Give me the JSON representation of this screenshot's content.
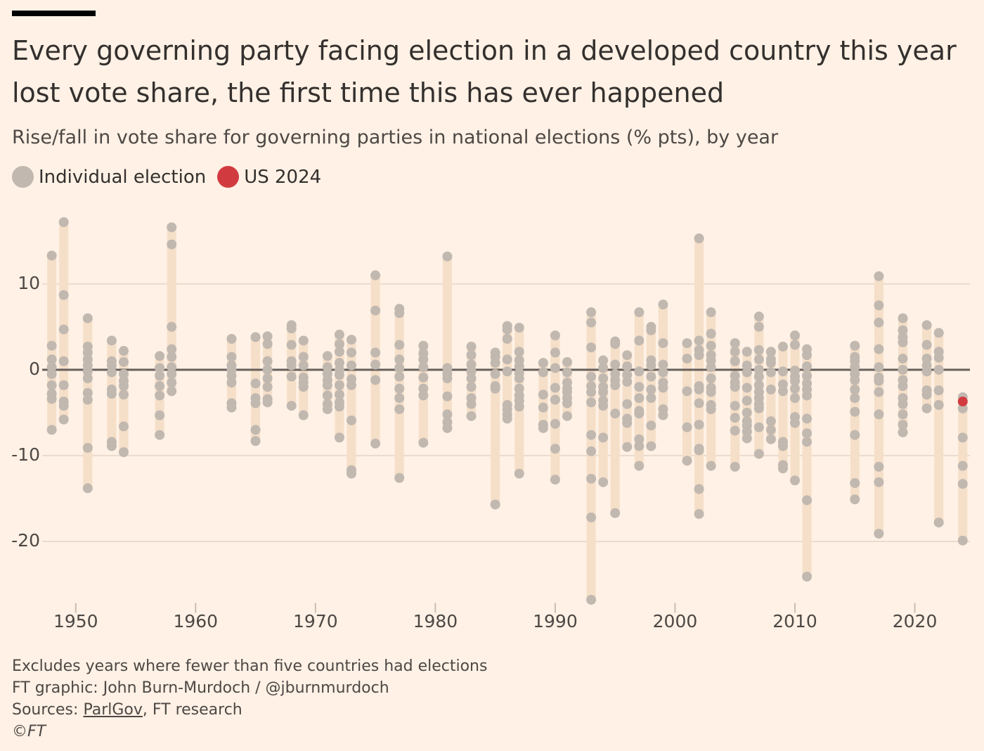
{
  "chart_data": {
    "type": "scatter",
    "title": "Every governing party facing election in a developed country this year lost vote share, the first time this has ever happened",
    "subtitle": "Rise/fall in vote share for governing parties in national elections (% pts), by year",
    "footnote": "Excludes years where fewer than five countries had elections",
    "credit": "FT graphic: John Burn-Murdoch / @jburnmurdoch",
    "sources": {
      "label": "Sources:",
      "link": "ParlGov",
      "rest": ", FT research"
    },
    "copyright": "©FT",
    "range_color": "#f5dfc8",
    "xlim": [
      1947.2,
      2024.6
    ],
    "xticks": [
      1950,
      1960,
      1970,
      1980,
      1990,
      2000,
      2010,
      2020
    ],
    "ylim": [
      -27.5,
      18.5
    ],
    "yticks": [
      -20,
      -10,
      0,
      10
    ],
    "grid": true,
    "series": [
      {
        "name": "Individual election",
        "color": "#c1b8b0",
        "x": [
          1948,
          1948,
          1948,
          1948,
          1948,
          1948,
          1948,
          1948,
          1948,
          1949,
          1949,
          1949,
          1949,
          1949,
          1949,
          1949,
          1949,
          1951,
          1951,
          1951,
          1951,
          1951,
          1951,
          1951,
          1951,
          1951,
          1951,
          1951,
          1953,
          1953,
          1953,
          1953,
          1953,
          1953,
          1953,
          1953,
          1954,
          1954,
          1954,
          1954,
          1954,
          1954,
          1954,
          1954,
          1957,
          1957,
          1957,
          1957,
          1957,
          1957,
          1957,
          1958,
          1958,
          1958,
          1958,
          1958,
          1958,
          1958,
          1958,
          1958,
          1963,
          1963,
          1963,
          1963,
          1963,
          1963,
          1963,
          1963,
          1965,
          1965,
          1965,
          1965,
          1965,
          1965,
          1966,
          1966,
          1966,
          1966,
          1966,
          1966,
          1966,
          1966,
          1968,
          1968,
          1968,
          1968,
          1968,
          1968,
          1968,
          1969,
          1969,
          1969,
          1969,
          1969,
          1969,
          1969,
          1971,
          1971,
          1971,
          1971,
          1971,
          1971,
          1971,
          1971,
          1972,
          1972,
          1972,
          1972,
          1972,
          1972,
          1972,
          1972,
          1972,
          1972,
          1972,
          1973,
          1973,
          1973,
          1973,
          1973,
          1973,
          1973,
          1973,
          1975,
          1975,
          1975,
          1975,
          1975,
          1975,
          1977,
          1977,
          1977,
          1977,
          1977,
          1977,
          1977,
          1977,
          1977,
          1977,
          1979,
          1979,
          1979,
          1979,
          1979,
          1979,
          1979,
          1979,
          1981,
          1981,
          1981,
          1981,
          1981,
          1981,
          1981,
          1981,
          1983,
          1983,
          1983,
          1983,
          1983,
          1983,
          1983,
          1983,
          1983,
          1985,
          1985,
          1985,
          1985,
          1985,
          1985,
          1985,
          1986,
          1986,
          1986,
          1986,
          1986,
          1986,
          1986,
          1986,
          1986,
          1987,
          1987,
          1987,
          1987,
          1987,
          1987,
          1987,
          1987,
          1987,
          1987,
          1987,
          1989,
          1989,
          1989,
          1989,
          1989,
          1989,
          1990,
          1990,
          1990,
          1990,
          1990,
          1990,
          1990,
          1990,
          1991,
          1991,
          1991,
          1991,
          1991,
          1991,
          1991,
          1991,
          1993,
          1993,
          1993,
          1993,
          1993,
          1993,
          1993,
          1993,
          1993,
          1993,
          1993,
          1993,
          1994,
          1994,
          1994,
          1994,
          1994,
          1994,
          1994,
          1994,
          1994,
          1995,
          1995,
          1995,
          1995,
          1995,
          1995,
          1995,
          1995,
          1996,
          1996,
          1996,
          1996,
          1996,
          1996,
          1996,
          1996,
          1997,
          1997,
          1997,
          1997,
          1997,
          1997,
          1997,
          1997,
          1997,
          1997,
          1998,
          1998,
          1998,
          1998,
          1998,
          1998,
          1998,
          1998,
          1998,
          1999,
          1999,
          1999,
          1999,
          1999,
          1999,
          1999,
          1999,
          2001,
          2001,
          2001,
          2001,
          2001,
          2002,
          2002,
          2002,
          2002,
          2002,
          2002,
          2002,
          2002,
          2002,
          2002,
          2002,
          2002,
          2003,
          2003,
          2003,
          2003,
          2003,
          2003,
          2003,
          2003,
          2003,
          2003,
          2003,
          2003,
          2005,
          2005,
          2005,
          2005,
          2005,
          2005,
          2005,
          2005,
          2005,
          2005,
          2006,
          2006,
          2006,
          2006,
          2006,
          2006,
          2006,
          2006,
          2006,
          2006,
          2007,
          2007,
          2007,
          2007,
          2007,
          2007,
          2007,
          2007,
          2007,
          2007,
          2007,
          2007,
          2007,
          2008,
          2008,
          2008,
          2008,
          2008,
          2008,
          2008,
          2008,
          2009,
          2009,
          2009,
          2009,
          2009,
          2009,
          2009,
          2009,
          2010,
          2010,
          2010,
          2010,
          2010,
          2010,
          2010,
          2010,
          2010,
          2010,
          2011,
          2011,
          2011,
          2011,
          2011,
          2011,
          2011,
          2011,
          2011,
          2011,
          2011,
          2011,
          2015,
          2015,
          2015,
          2015,
          2015,
          2015,
          2015,
          2015,
          2015,
          2015,
          2015,
          2015,
          2017,
          2017,
          2017,
          2017,
          2017,
          2017,
          2017,
          2017,
          2017,
          2017,
          2017,
          2017,
          2019,
          2019,
          2019,
          2019,
          2019,
          2019,
          2019,
          2019,
          2019,
          2019,
          2019,
          2019,
          2019,
          2021,
          2021,
          2021,
          2021,
          2021,
          2021,
          2021,
          2021,
          2022,
          2022,
          2022,
          2022,
          2022,
          2022,
          2022,
          2024,
          2024,
          2024,
          2024,
          2024,
          2024
        ],
        "values": [
          13.3,
          2.8,
          1.2,
          0.3,
          -0.5,
          -1.8,
          -2.8,
          -3.4,
          -7.0,
          17.2,
          8.7,
          4.7,
          1.0,
          -1.8,
          -3.7,
          -4.2,
          -5.8,
          6.0,
          2.7,
          2.0,
          1.2,
          0.5,
          -0.2,
          -1.0,
          -2.7,
          -3.5,
          -9.1,
          -13.8,
          3.4,
          1.0,
          0.5,
          -0.3,
          -2.3,
          -2.8,
          -8.4,
          -8.9,
          2.2,
          0.9,
          -0.5,
          -1.3,
          -1.9,
          -2.9,
          -6.6,
          -9.6,
          1.6,
          0.2,
          -0.7,
          -1.9,
          -3.0,
          -5.3,
          -7.6,
          16.6,
          14.6,
          5.0,
          2.4,
          1.5,
          0.3,
          -0.5,
          -1.5,
          -2.5,
          3.6,
          1.5,
          0.5,
          0.0,
          -0.7,
          -1.5,
          -3.9,
          -4.4,
          3.8,
          -1.6,
          -3.3,
          -3.9,
          -7.0,
          -8.3,
          3.9,
          3.0,
          1.0,
          0.0,
          -1.0,
          -2.0,
          -3.4,
          -3.8,
          5.2,
          4.8,
          2.9,
          1.0,
          0.5,
          -0.8,
          -4.2,
          3.4,
          1.5,
          0.5,
          -0.9,
          -1.5,
          -2.0,
          -5.3,
          1.6,
          0.3,
          -0.5,
          -1.2,
          -1.8,
          -3.0,
          -4.0,
          -4.6,
          4.1,
          3.0,
          2.1,
          0.8,
          0.0,
          -0.6,
          -1.8,
          -2.9,
          -3.8,
          -4.3,
          -7.9,
          3.5,
          2.0,
          0.5,
          -1.1,
          -1.8,
          -5.9,
          -11.7,
          -12.1,
          11.0,
          6.9,
          2.0,
          0.6,
          -1.2,
          -8.6,
          7.1,
          6.6,
          2.9,
          1.2,
          0.2,
          -0.8,
          -2.2,
          -3.3,
          -4.6,
          -12.6,
          2.8,
          1.9,
          1.2,
          0.3,
          -0.9,
          -2.2,
          -3.0,
          -8.5,
          13.2,
          0.2,
          -0.5,
          -1.0,
          -3.1,
          -5.2,
          -6.1,
          -6.8,
          2.7,
          1.7,
          0.6,
          -0.2,
          -1.0,
          -2.0,
          -3.3,
          -4.0,
          -5.4,
          2.0,
          1.5,
          0.8,
          -0.5,
          -1.9,
          -2.2,
          -15.7,
          5.1,
          4.7,
          3.6,
          1.2,
          -0.2,
          -4.1,
          -4.6,
          -5.2,
          -5.7,
          4.9,
          2.1,
          1.1,
          0.4,
          -0.4,
          -1.0,
          -2.2,
          -3.0,
          -3.6,
          -4.3,
          -12.1,
          0.8,
          -0.3,
          -2.9,
          -4.4,
          -6.4,
          -6.8,
          4.0,
          2.0,
          0.2,
          -2.1,
          -3.5,
          -6.3,
          -9.2,
          -12.8,
          0.9,
          -0.3,
          -1.5,
          -2.2,
          -2.6,
          -3.3,
          -3.9,
          -5.4,
          6.7,
          5.5,
          2.6,
          -0.8,
          -1.9,
          -2.6,
          -3.8,
          -7.6,
          -9.5,
          -12.7,
          -17.2,
          -26.8,
          1.1,
          0.2,
          -1.0,
          -2.0,
          -2.6,
          -3.6,
          -4.2,
          -7.9,
          -13.1,
          3.3,
          3.0,
          0.6,
          -0.5,
          -1.2,
          -1.8,
          -5.1,
          -16.7,
          1.7,
          0.4,
          -0.6,
          -1.4,
          -4.0,
          -5.7,
          -6.2,
          -9.0,
          6.7,
          3.4,
          -0.2,
          -2.0,
          -3.3,
          -4.8,
          -5.1,
          -8.1,
          -8.9,
          -11.2,
          5.0,
          4.6,
          1.1,
          0.5,
          -0.8,
          -2.3,
          -3.3,
          -6.5,
          -8.9,
          7.6,
          3.1,
          0.6,
          -0.3,
          -1.5,
          -2.1,
          -4.6,
          -5.3,
          3.1,
          1.3,
          -2.5,
          -6.7,
          -10.6,
          15.3,
          3.4,
          2.3,
          1.7,
          -1.9,
          -2.3,
          -3.9,
          -6.4,
          -9.2,
          -9.4,
          -13.9,
          -16.8,
          6.7,
          4.2,
          2.8,
          1.7,
          1.1,
          0.3,
          -1.0,
          -2.1,
          -2.6,
          -4.1,
          -4.6,
          -11.2,
          3.1,
          2.1,
          1.0,
          -0.7,
          -1.5,
          -2.0,
          -4.2,
          -5.6,
          -7.1,
          -11.3,
          2.1,
          0.5,
          -0.3,
          -2.1,
          -3.6,
          -5.0,
          -6.0,
          -6.5,
          -7.2,
          -8.0,
          6.2,
          5.0,
          2.3,
          1.2,
          0.0,
          -0.8,
          -1.8,
          -2.6,
          -3.3,
          -4.0,
          -4.5,
          -6.7,
          -9.8,
          2.1,
          1.2,
          0.8,
          -0.3,
          -2.3,
          -6.0,
          -7.0,
          -8.1,
          2.7,
          -0.2,
          -1.7,
          -2.5,
          -8.4,
          -8.9,
          -11.1,
          -11.5,
          4.0,
          2.9,
          -0.1,
          -0.8,
          -1.3,
          -2.2,
          -3.3,
          -5.5,
          -6.2,
          -12.9,
          2.4,
          1.7,
          0.4,
          -0.7,
          -1.6,
          -2.3,
          -3.0,
          -5.7,
          -7.4,
          -8.4,
          -15.2,
          -24.1,
          2.8,
          1.5,
          1.0,
          0.3,
          -0.5,
          -1.2,
          -2.3,
          -3.3,
          -4.9,
          -7.6,
          -13.2,
          -15.1,
          10.9,
          7.5,
          5.5,
          2.4,
          0.3,
          -0.9,
          -1.3,
          -2.6,
          -5.2,
          -11.3,
          -13.1,
          -19.1,
          6.0,
          4.6,
          3.8,
          3.2,
          1.3,
          0.0,
          -1.2,
          -1.9,
          -3.3,
          -4.0,
          -5.2,
          -6.4,
          -7.3,
          5.2,
          2.9,
          1.3,
          0.5,
          -0.2,
          -2.4,
          -2.9,
          -4.5,
          4.3,
          2.1,
          1.4,
          0.0,
          -2.4,
          -4.1,
          -17.8,
          -3.2,
          -4.5,
          -7.9,
          -11.2,
          -13.3,
          -19.9
        ]
      },
      {
        "name": "US 2024",
        "color": "#d13b40",
        "x": [
          2024
        ],
        "values": [
          -3.7
        ]
      }
    ]
  }
}
